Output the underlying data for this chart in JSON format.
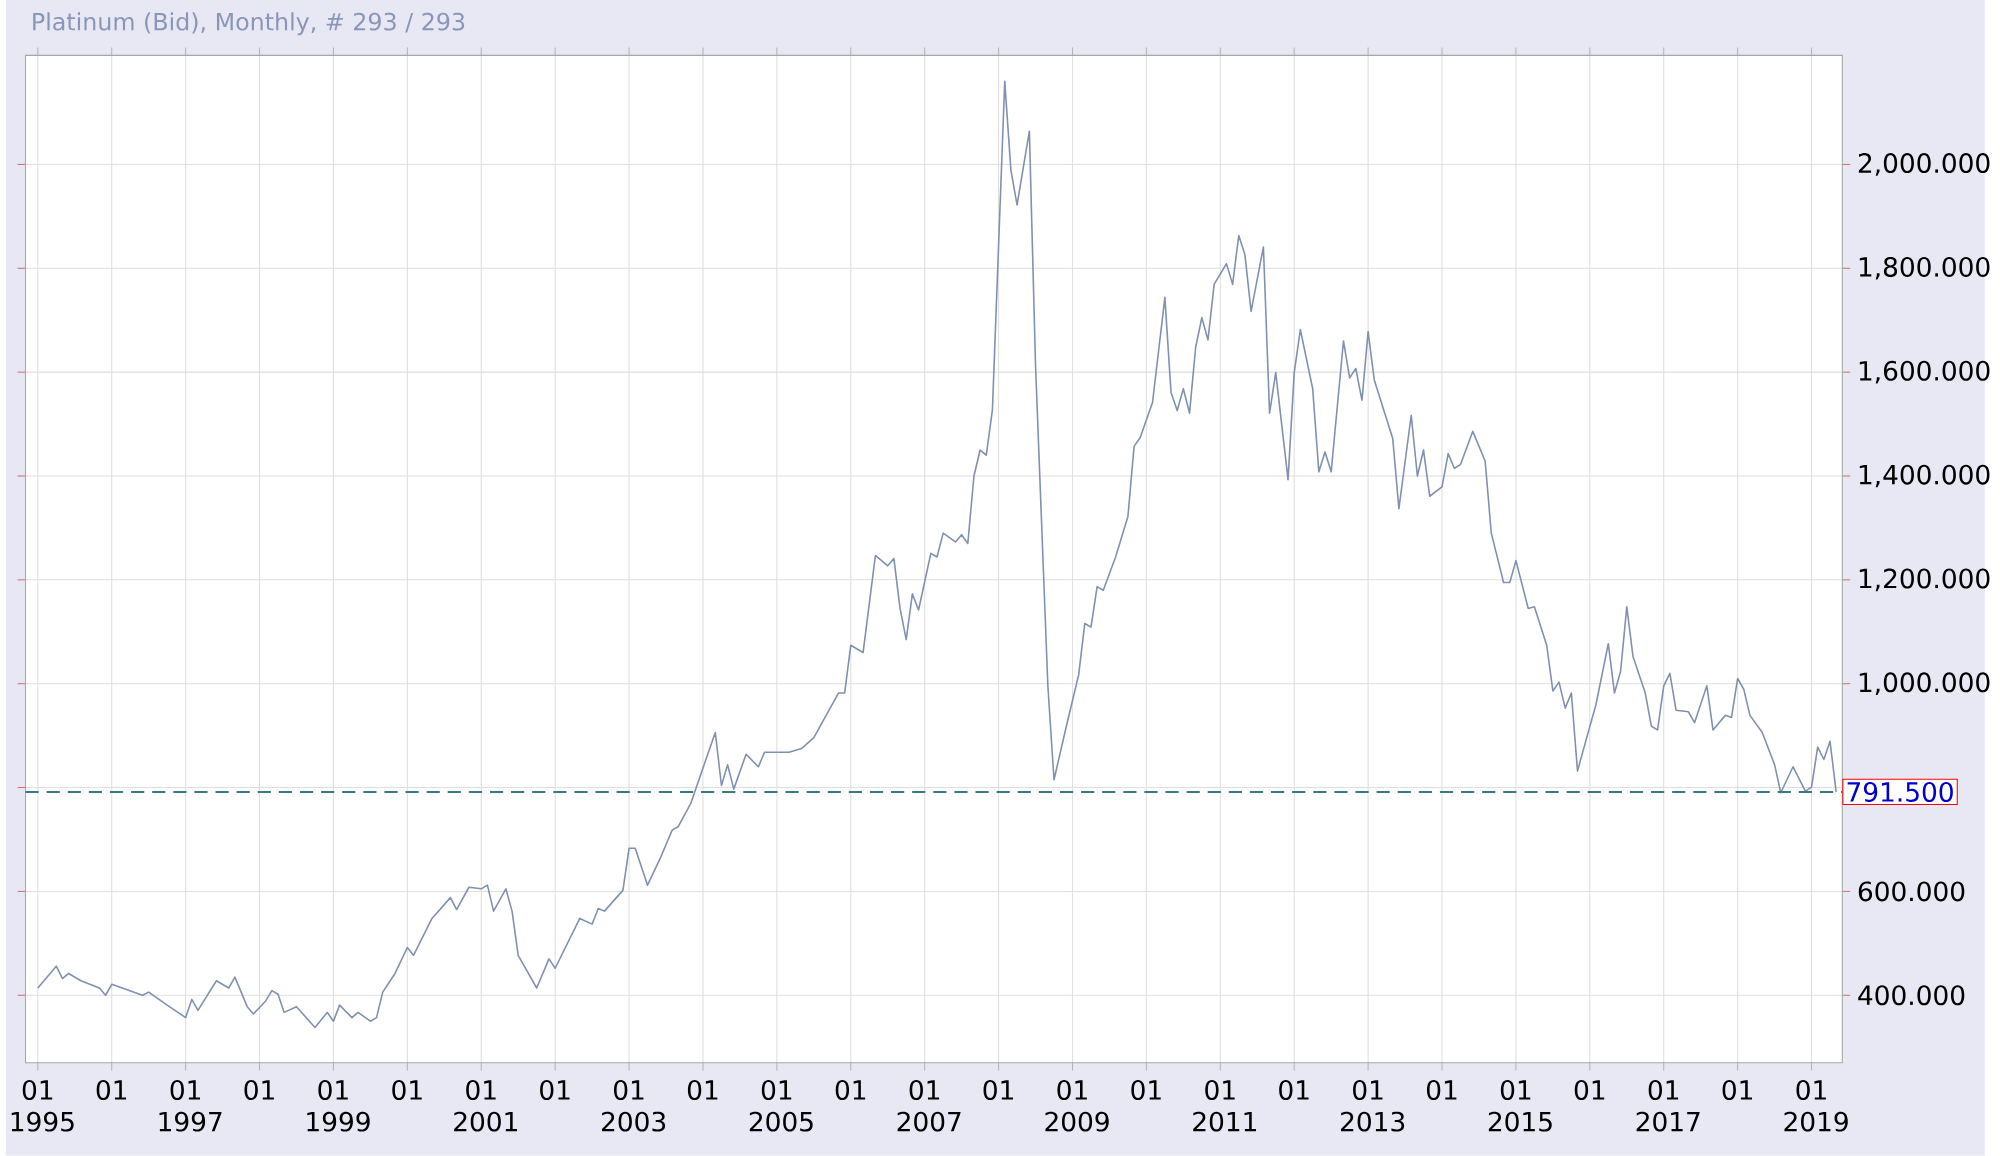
{
  "chart_data": {
    "type": "line",
    "title": "Platinum (Bid), Monthly, # 293 / 293",
    "x": [
      "1995-01",
      "1995-04",
      "1995-05",
      "1995-06",
      "1995-08",
      "1995-11",
      "1995-12",
      "1996-01",
      "1996-06",
      "1996-07",
      "1996-10",
      "1997-01",
      "1997-02",
      "1997-03",
      "1997-06",
      "1997-08",
      "1997-09",
      "1997-11",
      "1997-12",
      "1998-02",
      "1998-03",
      "1998-04",
      "1998-05",
      "1998-07",
      "1998-10",
      "1998-12",
      "1999-01",
      "1999-02",
      "1999-04",
      "1999-05",
      "1999-07",
      "1999-08",
      "1999-09",
      "1999-11",
      "2000-01",
      "2000-02",
      "2000-05",
      "2000-08",
      "2000-09",
      "2000-11",
      "2001-01",
      "2001-02",
      "2001-03",
      "2001-05",
      "2001-06",
      "2001-07",
      "2001-10",
      "2001-12",
      "2002-01",
      "2002-05",
      "2002-07",
      "2002-08",
      "2002-09",
      "2002-12",
      "2003-01",
      "2003-02",
      "2003-04",
      "2003-06",
      "2003-08",
      "2003-09",
      "2003-11",
      "2004-03",
      "2004-04",
      "2004-05",
      "2004-06",
      "2004-08",
      "2004-10",
      "2004-11",
      "2005-03",
      "2005-05",
      "2005-07",
      "2005-09",
      "2005-11",
      "2005-12",
      "2006-01",
      "2006-03",
      "2006-05",
      "2006-07",
      "2006-08",
      "2006-09",
      "2006-10",
      "2006-11",
      "2006-12",
      "2007-02",
      "2007-03",
      "2007-04",
      "2007-06",
      "2007-07",
      "2007-08",
      "2007-09",
      "2007-10",
      "2007-11",
      "2007-12",
      "2008-02",
      "2008-03",
      "2008-04",
      "2008-06",
      "2008-07",
      "2008-09",
      "2008-10",
      "2008-12",
      "2009-02",
      "2009-03",
      "2009-04",
      "2009-05",
      "2009-06",
      "2009-08",
      "2009-10",
      "2009-11",
      "2009-12",
      "2010-02",
      "2010-04",
      "2010-05",
      "2010-06",
      "2010-07",
      "2010-08",
      "2010-09",
      "2010-10",
      "2010-11",
      "2010-12",
      "2011-02",
      "2011-03",
      "2011-04",
      "2011-05",
      "2011-06",
      "2011-08",
      "2011-09",
      "2011-10",
      "2011-12",
      "2012-01",
      "2012-02",
      "2012-04",
      "2012-05",
      "2012-06",
      "2012-07",
      "2012-09",
      "2012-10",
      "2012-11",
      "2012-12",
      "2013-01",
      "2013-02",
      "2013-05",
      "2013-06",
      "2013-08",
      "2013-09",
      "2013-10",
      "2013-11",
      "2014-01",
      "2014-02",
      "2014-03",
      "2014-04",
      "2014-06",
      "2014-08",
      "2014-09",
      "2014-11",
      "2014-12",
      "2015-01",
      "2015-03",
      "2015-04",
      "2015-06",
      "2015-07",
      "2015-08",
      "2015-09",
      "2015-10",
      "2015-11",
      "2015-12",
      "2016-02",
      "2016-04",
      "2016-05",
      "2016-06",
      "2016-07",
      "2016-08",
      "2016-10",
      "2016-11",
      "2016-12",
      "2017-01",
      "2017-02",
      "2017-03",
      "2017-05",
      "2017-06",
      "2017-08",
      "2017-09",
      "2017-11",
      "2017-12",
      "2018-01",
      "2018-02",
      "2018-03",
      "2018-05",
      "2018-07",
      "2018-08",
      "2018-10",
      "2018-12",
      "2019-01",
      "2019-02",
      "2019-03",
      "2019-04",
      "2019-05"
    ],
    "series": [
      {
        "color": "#8090b0",
        "values": [
          414,
          456,
          432,
          442,
          428,
          414,
          400,
          421,
          400,
          406,
          381,
          357,
          392,
          371,
          428,
          414,
          435,
          378,
          364,
          389,
          409,
          402,
          367,
          378,
          338,
          367,
          350,
          381,
          357,
          367,
          350,
          357,
          406,
          442,
          492,
          477,
          548,
          588,
          565,
          608,
          605,
          612,
          562,
          605,
          562,
          477,
          414,
          470,
          452,
          548,
          537,
          567,
          562,
          602,
          683,
          683,
          612,
          662,
          718,
          725,
          769,
          906,
          804,
          844,
          797,
          864,
          840,
          868,
          868,
          875,
          896,
          939,
          982,
          982,
          1074,
          1060,
          1247,
          1227,
          1241,
          1145,
          1085,
          1173,
          1142,
          1251,
          1244,
          1290,
          1273,
          1287,
          1270,
          1400,
          1450,
          1440,
          1528,
          2160,
          1989,
          1922,
          2064,
          1613,
          996,
          815,
          918,
          1017,
          1116,
          1109,
          1187,
          1180,
          1244,
          1322,
          1457,
          1474,
          1542,
          1744,
          1561,
          1526,
          1568,
          1521,
          1648,
          1705,
          1662,
          1769,
          1809,
          1769,
          1863,
          1826,
          1717,
          1841,
          1521,
          1599,
          1393,
          1599,
          1682,
          1568,
          1408,
          1446,
          1408,
          1660,
          1589,
          1607,
          1546,
          1678,
          1585,
          1472,
          1337,
          1517,
          1400,
          1450,
          1361,
          1379,
          1443,
          1415,
          1422,
          1486,
          1429,
          1290,
          1195,
          1195,
          1237,
          1145,
          1148,
          1074,
          986,
          1003,
          953,
          982,
          832,
          875,
          960,
          1077,
          982,
          1024,
          1148,
          1053,
          982,
          918,
          911,
          996,
          1020,
          949,
          946,
          925,
          996,
          911,
          939,
          935,
          1010,
          989,
          939,
          906,
          844,
          790,
          840,
          793,
          801,
          878,
          854,
          889,
          791.5
        ]
      }
    ],
    "xlim": [
      "1994-11",
      "2019-06"
    ],
    "xticks": [
      {
        "value": "1995-01",
        "label": "01 1995"
      },
      {
        "value": "1996-01",
        "label": "01"
      },
      {
        "value": "1997-01",
        "label": "01 1997"
      },
      {
        "value": "1998-01",
        "label": "01"
      },
      {
        "value": "1999-01",
        "label": "01 1999"
      },
      {
        "value": "2000-01",
        "label": "01"
      },
      {
        "value": "2001-01",
        "label": "01 2001"
      },
      {
        "value": "2002-01",
        "label": "01"
      },
      {
        "value": "2003-01",
        "label": "01 2003"
      },
      {
        "value": "2004-01",
        "label": "01"
      },
      {
        "value": "2005-01",
        "label": "01 2005"
      },
      {
        "value": "2006-01",
        "label": "01"
      },
      {
        "value": "2007-01",
        "label": "01 2007"
      },
      {
        "value": "2008-01",
        "label": "01"
      },
      {
        "value": "2009-01",
        "label": "01 2009"
      },
      {
        "value": "2010-01",
        "label": "01"
      },
      {
        "value": "2011-01",
        "label": "01 2011"
      },
      {
        "value": "2012-01",
        "label": "01"
      },
      {
        "value": "2013-01",
        "label": "01 2013"
      },
      {
        "value": "2014-01",
        "label": "01"
      },
      {
        "value": "2015-01",
        "label": "01 2015"
      },
      {
        "value": "2016-01",
        "label": "01"
      },
      {
        "value": "2017-01",
        "label": "01 2017"
      },
      {
        "value": "2018-01",
        "label": "01"
      },
      {
        "value": "2019-01",
        "label": "01 2019"
      }
    ],
    "ylim": [
      270,
      2210
    ],
    "yticks": [
      {
        "value": 400,
        "label": "400.000"
      },
      {
        "value": 600,
        "label": "600.000"
      },
      {
        "value": 800,
        "label": null
      },
      {
        "value": 1000,
        "label": "1,000.000"
      },
      {
        "value": 1200,
        "label": "1,200.000"
      },
      {
        "value": 1400,
        "label": "1,400.000"
      },
      {
        "value": 1600,
        "label": "1,600.000"
      },
      {
        "value": 1800,
        "label": "1,800.000"
      },
      {
        "value": 2000,
        "label": "2,000.000"
      }
    ],
    "ref_lines": [
      {
        "axis": "y",
        "value": 791.5,
        "label": "791.500",
        "color": "#3a7a78",
        "line_style": "dashed"
      }
    ],
    "grid": true,
    "marker": "none",
    "line_style": "solid"
  }
}
